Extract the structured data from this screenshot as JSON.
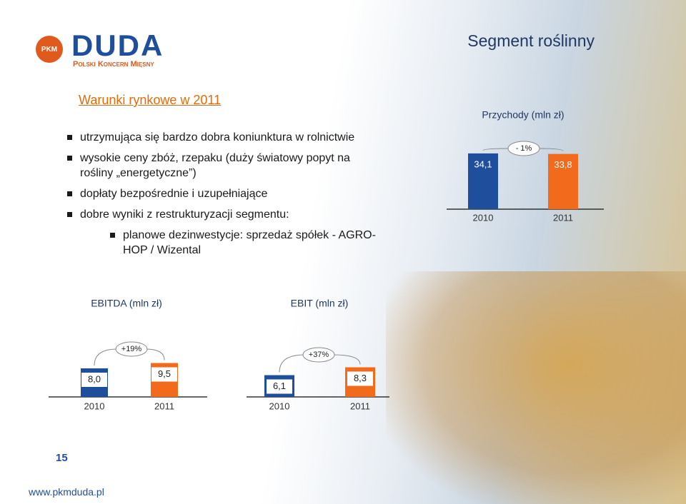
{
  "logo": {
    "mark": "PKM",
    "name": "DUDA",
    "tagline": "Polski Koncern Mięsny"
  },
  "title": "Segment roślinny",
  "section": {
    "heading": "Warunki rynkowe w 2011",
    "bullets": [
      "utrzymująca się bardzo dobra koniunktura w rolnictwie",
      "wysokie ceny zbóż, rzepaku (duży światowy  popyt na rośliny „energetyczne”)",
      "dopłaty bezpośrednie i uzupełniające",
      "dobre wyniki z restrukturyzacji segmentu:"
    ],
    "sub_bullets": [
      "planowe dezinwestycje:  sprzedaż spółek - AGRO-HOP / Wizental"
    ]
  },
  "chart_data": [
    {
      "type": "bar",
      "title": "Przychody (mln zł)",
      "categories": [
        "2010",
        "2011"
      ],
      "values": [
        34.1,
        33.8
      ],
      "value_labels": [
        "34,1",
        "33,8"
      ],
      "colors": [
        "#1f4e9c",
        "#f26b1d"
      ],
      "annotation": "- 1%"
    },
    {
      "type": "bar",
      "title": "EBITDA (mln zł)",
      "categories": [
        "2010",
        "2011"
      ],
      "values": [
        8.0,
        9.5
      ],
      "value_labels": [
        "8,0",
        "9,5"
      ],
      "colors": [
        "#1f4e9c",
        "#f26b1d"
      ],
      "annotation": "+19%"
    },
    {
      "type": "bar",
      "title": "EBIT (mln zł)",
      "categories": [
        "2010",
        "2011"
      ],
      "values": [
        6.1,
        8.3
      ],
      "value_labels": [
        "6,1",
        "8,3"
      ],
      "colors": [
        "#1f4e9c",
        "#f26b1d"
      ],
      "annotation": "+37%"
    }
  ],
  "footer": {
    "page": "15",
    "url": "www.pkmduda.pl"
  }
}
